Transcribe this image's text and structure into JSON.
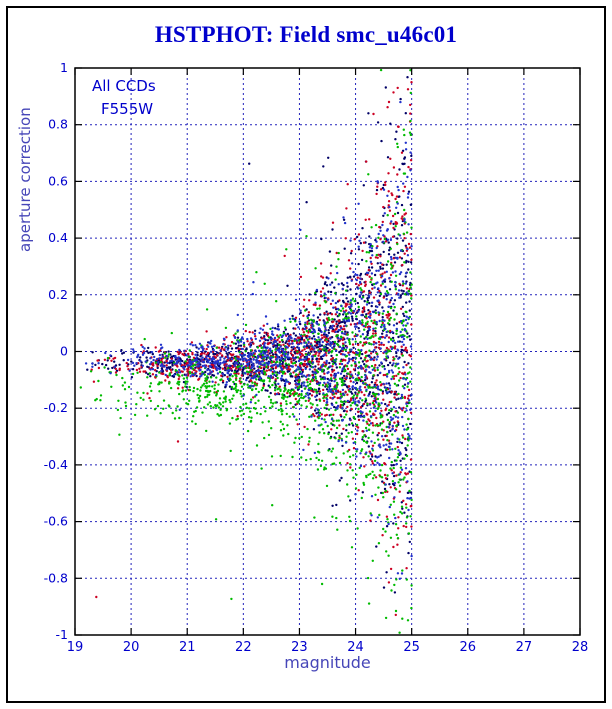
{
  "chart_data": {
    "type": "scatter",
    "title": "HSTPHOT: Field smc_u46c01",
    "xlabel": "magnitude",
    "ylabel": "aperture correction",
    "annotations": [
      "All CCDs",
      "F555W"
    ],
    "xlim": [
      19,
      28
    ],
    "ylim": [
      -1,
      1
    ],
    "x_ticks": [
      19,
      20,
      21,
      22,
      23,
      24,
      25,
      26,
      27,
      28
    ],
    "y_ticks": [
      -1,
      -0.8,
      -0.6,
      -0.4,
      -0.2,
      0,
      0.2,
      0.4,
      0.6,
      0.8,
      1
    ],
    "grid": "dashed",
    "legend": "none",
    "x_data_range": [
      19,
      25
    ],
    "point_radius": 1.2,
    "colors": {
      "title": "#0000cc",
      "annotation": "#0000cc",
      "axis_label": "#4646b8",
      "tick_text": "#0000cc",
      "grid": "#2222bb",
      "frame": "#000000"
    },
    "distribution_note": "Aperture corrections cluster near -0.05 for bright stars (mag 19-22); scatter grows rapidly for faint stars, spanning -1 to +1 by mag 24.5-25; no data fainter than mag 25. Four point colors correspond to the four CCD chips.",
    "series": [
      {
        "name": "navy",
        "color": "#000066",
        "n_points": 1150,
        "seed": 11,
        "x_power": 0.45,
        "y_base": -0.04,
        "y_slope": 0.02,
        "y_slope_start": 22,
        "sigma_bright": 0.02,
        "sigma_faint": 0.5,
        "sigma_tau": 0.95,
        "outlier_frac": 0.025,
        "extreme_frac": 0.004
      },
      {
        "name": "red",
        "color": "#cc0022",
        "n_points": 1100,
        "seed": 22,
        "x_power": 0.45,
        "y_base": -0.045,
        "y_slope": 0.02,
        "y_slope_start": 22,
        "sigma_bright": 0.025,
        "sigma_faint": 0.5,
        "sigma_tau": 0.95,
        "outlier_frac": 0.025,
        "extreme_frac": 0.003
      },
      {
        "name": "green",
        "color": "#00bb00",
        "n_points": 1150,
        "seed": 33,
        "x_power": 0.45,
        "y_base": -0.12,
        "y_slope": 0.01,
        "y_slope_start": 22,
        "sigma_bright": 0.055,
        "sigma_faint": 0.5,
        "sigma_tau": 1.0,
        "outlier_frac": 0.04,
        "extreme_frac": 0.004
      },
      {
        "name": "blue",
        "color": "#2233cc",
        "n_points": 1000,
        "seed": 44,
        "x_power": 0.45,
        "y_base": -0.035,
        "y_slope": 0.02,
        "y_slope_start": 22,
        "sigma_bright": 0.022,
        "sigma_faint": 0.5,
        "sigma_tau": 0.95,
        "outlier_frac": 0.025,
        "extreme_frac": 0.003
      }
    ]
  }
}
